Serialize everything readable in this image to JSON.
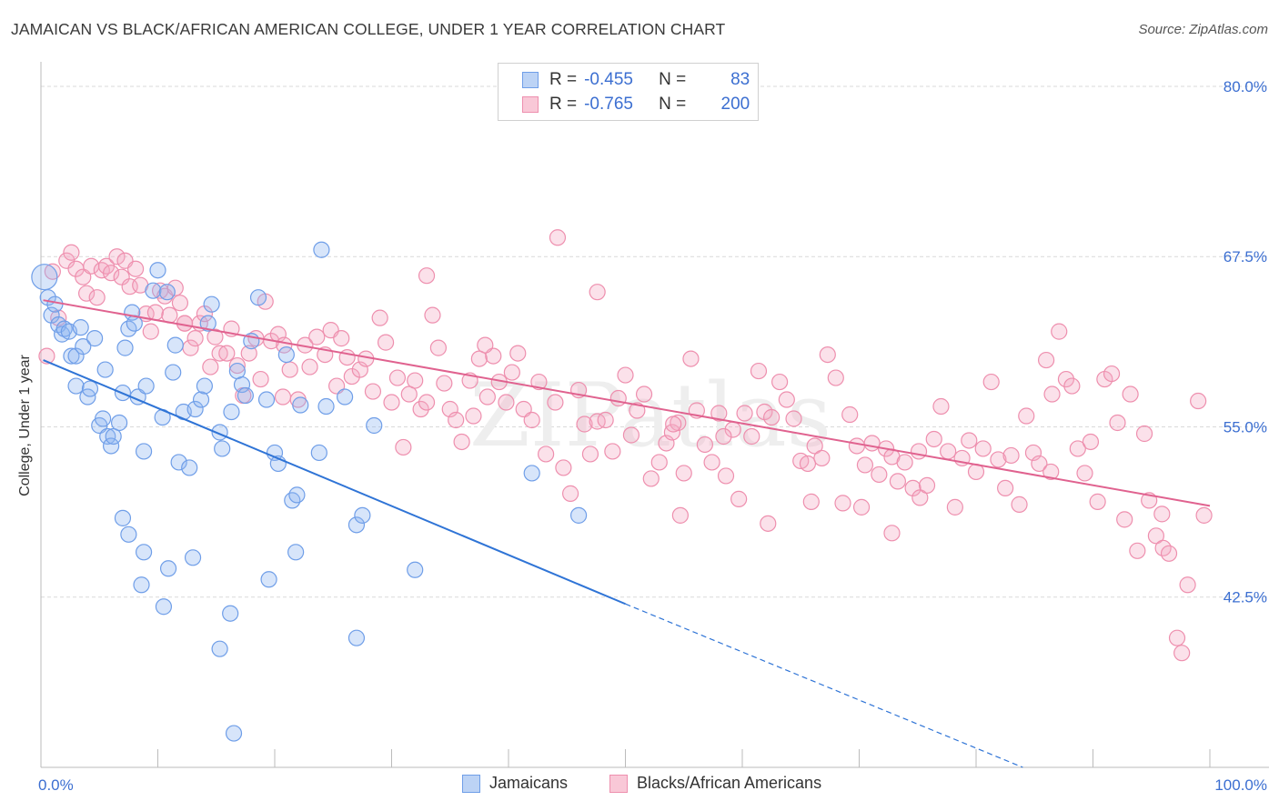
{
  "header": {
    "title": "JAMAICAN VS BLACK/AFRICAN AMERICAN COLLEGE, UNDER 1 YEAR CORRELATION CHART",
    "source": "Source: ZipAtlas.com"
  },
  "legend": {
    "rows": [
      {
        "r_label": "R =",
        "r_value": "-0.455",
        "n_label": "N =",
        "n_value": "83",
        "color": "#6f9ee8"
      },
      {
        "r_label": "R =",
        "r_value": "-0.765",
        "n_label": "N =",
        "n_value": "200",
        "color": "#ee8fae"
      }
    ]
  },
  "bottom_legend": {
    "items": [
      {
        "label": "Jamaicans",
        "color": "#6f9ee8"
      },
      {
        "label": "Blacks/African Americans",
        "color": "#ee8fae"
      }
    ]
  },
  "watermark": "ZIPatlas",
  "chart_data": {
    "type": "scatter",
    "title": "JAMAICAN VS BLACK/AFRICAN AMERICAN COLLEGE, UNDER 1 YEAR CORRELATION CHART",
    "xlabel": "",
    "ylabel": "College, Under 1 year",
    "xlim": [
      0,
      100
    ],
    "ylim": [
      30,
      81
    ],
    "x_tick_labels": [
      "0.0%",
      "100.0%"
    ],
    "y_tick_labels": [
      "80.0%",
      "67.5%",
      "55.0%",
      "42.5%"
    ],
    "y_ticks": [
      80.0,
      67.5,
      55.0,
      42.5
    ],
    "grid": true,
    "legend_position": "top-center",
    "series": [
      {
        "name": "Jamaicans",
        "color": "#6f9ee8",
        "r": -0.455,
        "n": 83,
        "trend": {
          "x_start": 0.2,
          "y_start": 59.9,
          "x_end_solid": 50,
          "y_end_solid": 42.0,
          "x_end_dashed": 84,
          "y_end_dashed": 30.0
        },
        "points": [
          [
            0.3,
            66.0
          ],
          [
            0.6,
            64.5
          ],
          [
            0.9,
            63.2
          ],
          [
            1.2,
            64.0
          ],
          [
            1.5,
            62.5
          ],
          [
            1.8,
            61.8
          ],
          [
            2.0,
            62.2
          ],
          [
            2.4,
            62.0
          ],
          [
            2.6,
            60.2
          ],
          [
            3.0,
            60.2
          ],
          [
            3.0,
            58.0
          ],
          [
            3.4,
            62.3
          ],
          [
            3.6,
            60.9
          ],
          [
            4.0,
            57.2
          ],
          [
            4.2,
            57.8
          ],
          [
            4.6,
            61.5
          ],
          [
            5.0,
            55.1
          ],
          [
            5.3,
            55.6
          ],
          [
            5.5,
            59.2
          ],
          [
            5.7,
            54.3
          ],
          [
            6.0,
            53.6
          ],
          [
            6.2,
            54.3
          ],
          [
            6.7,
            55.3
          ],
          [
            7.0,
            57.5
          ],
          [
            7.2,
            60.8
          ],
          [
            7.5,
            62.2
          ],
          [
            7.8,
            63.4
          ],
          [
            8.0,
            62.6
          ],
          [
            8.3,
            57.2
          ],
          [
            8.8,
            53.2
          ],
          [
            9.0,
            58.0
          ],
          [
            9.6,
            65.0
          ],
          [
            10.0,
            66.5
          ],
          [
            10.4,
            55.7
          ],
          [
            10.8,
            64.9
          ],
          [
            11.3,
            59.0
          ],
          [
            11.5,
            61.0
          ],
          [
            11.8,
            52.4
          ],
          [
            12.2,
            56.1
          ],
          [
            12.7,
            52.0
          ],
          [
            13.2,
            56.3
          ],
          [
            13.7,
            57.0
          ],
          [
            14.0,
            58.0
          ],
          [
            14.3,
            62.6
          ],
          [
            14.6,
            64.0
          ],
          [
            15.3,
            54.6
          ],
          [
            15.5,
            53.4
          ],
          [
            16.3,
            56.1
          ],
          [
            16.8,
            59.1
          ],
          [
            17.2,
            58.1
          ],
          [
            17.5,
            57.3
          ],
          [
            18.0,
            61.3
          ],
          [
            18.6,
            64.5
          ],
          [
            19.3,
            57.0
          ],
          [
            20.0,
            53.1
          ],
          [
            20.3,
            52.3
          ],
          [
            21.0,
            60.3
          ],
          [
            21.5,
            49.6
          ],
          [
            21.9,
            50.0
          ],
          [
            22.2,
            56.6
          ],
          [
            23.8,
            53.1
          ],
          [
            24.0,
            68.0
          ],
          [
            24.4,
            56.5
          ],
          [
            26.0,
            57.2
          ],
          [
            27.0,
            47.8
          ],
          [
            27.5,
            48.5
          ],
          [
            28.5,
            55.1
          ],
          [
            32.0,
            44.5
          ],
          [
            42.0,
            51.6
          ],
          [
            46.0,
            48.5
          ],
          [
            7.0,
            48.3
          ],
          [
            7.5,
            47.1
          ],
          [
            8.8,
            45.8
          ],
          [
            8.6,
            43.4
          ],
          [
            10.5,
            41.8
          ],
          [
            10.9,
            44.6
          ],
          [
            13.0,
            45.4
          ],
          [
            15.3,
            38.7
          ],
          [
            16.2,
            41.3
          ],
          [
            16.5,
            32.5
          ],
          [
            19.5,
            43.8
          ],
          [
            21.8,
            45.8
          ],
          [
            27.0,
            39.5
          ]
        ]
      },
      {
        "name": "Blacks/African Americans",
        "color": "#ee8fae",
        "r": -0.765,
        "n": 200,
        "trend": {
          "x_start": 0.2,
          "y_start": 64.3,
          "x_end": 100,
          "y_end": 49.2
        },
        "points": [
          [
            0.5,
            60.2
          ],
          [
            1.0,
            66.4
          ],
          [
            1.5,
            63.0
          ],
          [
            2.2,
            67.2
          ],
          [
            2.6,
            67.8
          ],
          [
            3.0,
            66.6
          ],
          [
            3.6,
            66.0
          ],
          [
            3.9,
            64.8
          ],
          [
            4.3,
            66.8
          ],
          [
            4.8,
            64.5
          ],
          [
            5.2,
            66.5
          ],
          [
            5.6,
            66.8
          ],
          [
            6.0,
            66.3
          ],
          [
            6.5,
            67.5
          ],
          [
            6.9,
            66.0
          ],
          [
            7.2,
            67.2
          ],
          [
            7.6,
            65.3
          ],
          [
            8.1,
            66.6
          ],
          [
            8.5,
            65.4
          ],
          [
            9.0,
            63.3
          ],
          [
            9.4,
            62.0
          ],
          [
            9.8,
            63.4
          ],
          [
            10.2,
            65.0
          ],
          [
            10.6,
            64.6
          ],
          [
            11.0,
            63.2
          ],
          [
            11.5,
            65.2
          ],
          [
            11.9,
            64.1
          ],
          [
            12.3,
            62.6
          ],
          [
            12.8,
            60.8
          ],
          [
            13.2,
            61.5
          ],
          [
            13.6,
            62.6
          ],
          [
            14.0,
            63.3
          ],
          [
            14.5,
            59.4
          ],
          [
            14.9,
            61.6
          ],
          [
            15.3,
            60.4
          ],
          [
            15.9,
            60.4
          ],
          [
            16.3,
            62.2
          ],
          [
            16.8,
            59.5
          ],
          [
            17.3,
            57.3
          ],
          [
            17.8,
            60.4
          ],
          [
            18.4,
            61.5
          ],
          [
            18.8,
            58.5
          ],
          [
            19.2,
            64.2
          ],
          [
            19.7,
            61.3
          ],
          [
            20.3,
            61.8
          ],
          [
            20.8,
            61.0
          ],
          [
            21.3,
            59.2
          ],
          [
            22.0,
            57.0
          ],
          [
            22.6,
            61.0
          ],
          [
            23.0,
            59.4
          ],
          [
            23.6,
            61.6
          ],
          [
            24.3,
            60.3
          ],
          [
            24.8,
            62.1
          ],
          [
            25.3,
            58.0
          ],
          [
            25.7,
            61.5
          ],
          [
            26.2,
            60.1
          ],
          [
            26.6,
            58.7
          ],
          [
            27.3,
            59.2
          ],
          [
            27.8,
            60.0
          ],
          [
            28.4,
            57.6
          ],
          [
            29.0,
            63.0
          ],
          [
            29.5,
            61.2
          ],
          [
            30.0,
            56.8
          ],
          [
            30.5,
            58.6
          ],
          [
            31.0,
            53.5
          ],
          [
            31.5,
            57.4
          ],
          [
            32.0,
            58.4
          ],
          [
            32.5,
            56.3
          ],
          [
            33.0,
            66.1
          ],
          [
            33.5,
            63.2
          ],
          [
            34.0,
            60.8
          ],
          [
            34.5,
            58.2
          ],
          [
            35.0,
            56.3
          ],
          [
            35.5,
            55.5
          ],
          [
            36.0,
            53.9
          ],
          [
            36.7,
            58.4
          ],
          [
            37.0,
            55.8
          ],
          [
            37.5,
            60.0
          ],
          [
            38.2,
            57.2
          ],
          [
            38.7,
            60.2
          ],
          [
            39.2,
            58.3
          ],
          [
            39.8,
            56.8
          ],
          [
            40.3,
            59.0
          ],
          [
            40.8,
            60.4
          ],
          [
            41.3,
            56.3
          ],
          [
            42.0,
            55.5
          ],
          [
            42.6,
            58.3
          ],
          [
            43.2,
            53.0
          ],
          [
            44.0,
            56.8
          ],
          [
            44.7,
            52.0
          ],
          [
            45.3,
            50.1
          ],
          [
            46.0,
            57.7
          ],
          [
            46.5,
            55.2
          ],
          [
            47.0,
            53.0
          ],
          [
            47.6,
            55.4
          ],
          [
            48.3,
            55.5
          ],
          [
            48.9,
            53.2
          ],
          [
            49.4,
            57.1
          ],
          [
            50.0,
            58.8
          ],
          [
            50.5,
            54.4
          ],
          [
            51.0,
            56.2
          ],
          [
            51.6,
            57.4
          ],
          [
            52.2,
            51.2
          ],
          [
            52.9,
            52.4
          ],
          [
            53.5,
            53.8
          ],
          [
            54.0,
            54.6
          ],
          [
            54.5,
            55.3
          ],
          [
            55.0,
            51.6
          ],
          [
            55.6,
            60.0
          ],
          [
            56.1,
            56.2
          ],
          [
            56.8,
            53.7
          ],
          [
            57.4,
            52.4
          ],
          [
            58.0,
            56.0
          ],
          [
            58.6,
            51.4
          ],
          [
            59.2,
            54.8
          ],
          [
            59.7,
            49.7
          ],
          [
            60.2,
            56.0
          ],
          [
            60.8,
            54.3
          ],
          [
            61.4,
            59.1
          ],
          [
            61.9,
            56.1
          ],
          [
            62.5,
            55.7
          ],
          [
            63.2,
            58.3
          ],
          [
            63.8,
            57.0
          ],
          [
            64.4,
            55.6
          ],
          [
            65.0,
            52.5
          ],
          [
            65.6,
            52.3
          ],
          [
            66.2,
            53.6
          ],
          [
            66.8,
            52.7
          ],
          [
            67.3,
            60.3
          ],
          [
            68.0,
            58.6
          ],
          [
            68.6,
            49.4
          ],
          [
            69.2,
            55.9
          ],
          [
            69.8,
            53.6
          ],
          [
            70.5,
            52.2
          ],
          [
            71.1,
            53.8
          ],
          [
            71.7,
            51.5
          ],
          [
            72.3,
            53.4
          ],
          [
            72.8,
            52.8
          ],
          [
            73.3,
            51.0
          ],
          [
            73.9,
            52.4
          ],
          [
            74.6,
            50.5
          ],
          [
            75.2,
            49.8
          ],
          [
            75.8,
            50.7
          ],
          [
            76.4,
            54.1
          ],
          [
            77.0,
            56.5
          ],
          [
            77.6,
            53.2
          ],
          [
            78.2,
            49.1
          ],
          [
            78.8,
            52.7
          ],
          [
            79.4,
            54.0
          ],
          [
            80.0,
            51.7
          ],
          [
            80.6,
            53.4
          ],
          [
            81.3,
            58.3
          ],
          [
            81.9,
            52.6
          ],
          [
            82.5,
            50.5
          ],
          [
            83.0,
            52.9
          ],
          [
            83.7,
            49.3
          ],
          [
            84.3,
            55.8
          ],
          [
            84.9,
            53.1
          ],
          [
            85.4,
            52.3
          ],
          [
            86.0,
            59.9
          ],
          [
            86.5,
            57.4
          ],
          [
            87.1,
            62.0
          ],
          [
            87.7,
            58.5
          ],
          [
            88.2,
            58.0
          ],
          [
            88.7,
            53.4
          ],
          [
            89.3,
            51.6
          ],
          [
            89.8,
            53.9
          ],
          [
            90.4,
            49.5
          ],
          [
            91.0,
            58.5
          ],
          [
            91.6,
            58.9
          ],
          [
            92.1,
            55.3
          ],
          [
            92.7,
            48.2
          ],
          [
            93.2,
            57.4
          ],
          [
            93.8,
            45.9
          ],
          [
            94.4,
            54.5
          ],
          [
            94.8,
            49.6
          ],
          [
            95.4,
            47.0
          ],
          [
            96.0,
            46.1
          ],
          [
            96.5,
            45.7
          ],
          [
            97.2,
            39.5
          ],
          [
            97.6,
            38.4
          ],
          [
            98.1,
            43.4
          ],
          [
            99.0,
            56.9
          ],
          [
            99.5,
            48.5
          ],
          [
            12.3,
            62.6
          ],
          [
            20.7,
            57.2
          ],
          [
            33.0,
            56.8
          ],
          [
            38.0,
            61.0
          ],
          [
            44.2,
            68.9
          ],
          [
            47.6,
            64.9
          ],
          [
            54.1,
            55.2
          ],
          [
            54.7,
            48.5
          ],
          [
            58.4,
            54.3
          ],
          [
            62.2,
            47.9
          ],
          [
            65.9,
            49.5
          ],
          [
            70.2,
            49.1
          ],
          [
            72.8,
            47.2
          ],
          [
            75.1,
            53.2
          ],
          [
            86.4,
            51.7
          ],
          [
            95.9,
            48.6
          ]
        ]
      }
    ]
  }
}
